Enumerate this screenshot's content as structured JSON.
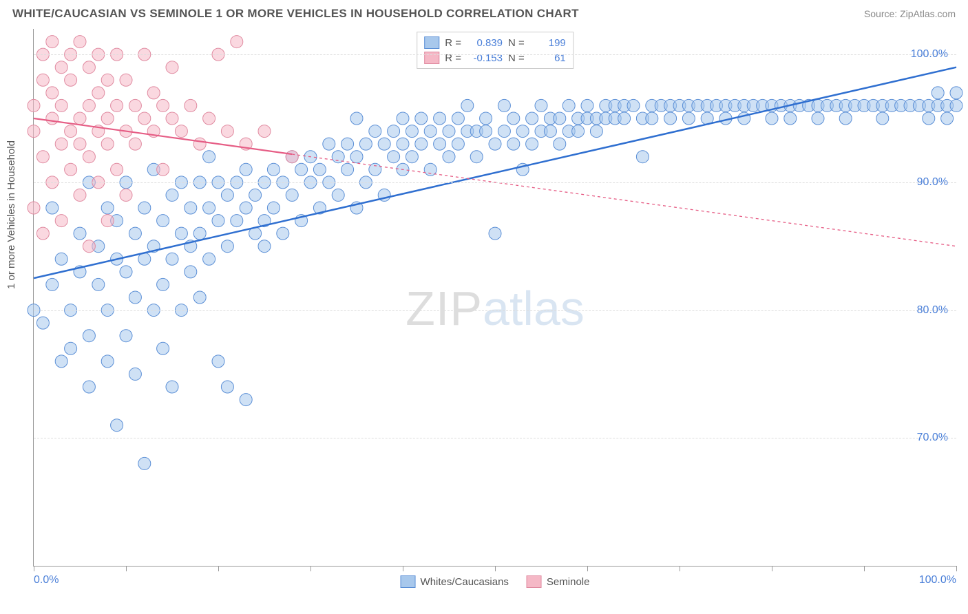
{
  "header": {
    "title": "WHITE/CAUCASIAN VS SEMINOLE 1 OR MORE VEHICLES IN HOUSEHOLD CORRELATION CHART",
    "source": "Source: ZipAtlas.com"
  },
  "chart": {
    "type": "scatter",
    "ylabel": "1 or more Vehicles in Household",
    "background_color": "#ffffff",
    "grid_color": "#dddddd",
    "axis_color": "#999999",
    "tick_label_color": "#4a7fd8",
    "label_fontsize": 15,
    "tick_fontsize": 16,
    "title_fontsize": 17,
    "xlim": [
      0,
      100
    ],
    "ylim": [
      60,
      102
    ],
    "xticks": [
      0,
      10,
      20,
      30,
      40,
      50,
      60,
      70,
      80,
      90,
      100
    ],
    "xtick_labels_shown": {
      "0": "0.0%",
      "100": "100.0%"
    },
    "yticks": [
      70,
      80,
      90,
      100
    ],
    "ytick_labels": [
      "70.0%",
      "80.0%",
      "90.0%",
      "100.0%"
    ],
    "watermark": {
      "part1": "ZIP",
      "part2": "atlas"
    },
    "legend_bottom": [
      {
        "label": "Whites/Caucasians",
        "fill": "#a8c8ec",
        "stroke": "#5b8fd6"
      },
      {
        "label": "Seminole",
        "fill": "#f5b8c6",
        "stroke": "#e08aa0"
      }
    ],
    "stats_legend": [
      {
        "fill": "#a8c8ec",
        "stroke": "#5b8fd6",
        "r_label": "R =",
        "r": "0.839",
        "n_label": "N =",
        "n": "199"
      },
      {
        "fill": "#f5b8c6",
        "stroke": "#e08aa0",
        "r_label": "R =",
        "r": "-0.153",
        "n_label": "N =",
        "n": "61"
      }
    ],
    "series": [
      {
        "name": "Whites/Caucasians",
        "marker_fill": "#a8c8ec",
        "marker_stroke": "#5b8fd6",
        "marker_radius": 9,
        "marker_opacity": 0.55,
        "trend": {
          "x1": 0,
          "y1": 82.5,
          "x2": 100,
          "y2": 99.0,
          "color": "#2f6fd0",
          "width": 2.5,
          "dash": "none",
          "solid_extent_x": 100
        },
        "points": [
          [
            0,
            80
          ],
          [
            1,
            79
          ],
          [
            2,
            82
          ],
          [
            2,
            88
          ],
          [
            3,
            76
          ],
          [
            3,
            84
          ],
          [
            4,
            80
          ],
          [
            4,
            77
          ],
          [
            5,
            86
          ],
          [
            5,
            83
          ],
          [
            6,
            78
          ],
          [
            6,
            90
          ],
          [
            6,
            74
          ],
          [
            7,
            85
          ],
          [
            7,
            82
          ],
          [
            8,
            88
          ],
          [
            8,
            80
          ],
          [
            8,
            76
          ],
          [
            9,
            84
          ],
          [
            9,
            87
          ],
          [
            9,
            71
          ],
          [
            10,
            83
          ],
          [
            10,
            78
          ],
          [
            10,
            90
          ],
          [
            11,
            86
          ],
          [
            11,
            81
          ],
          [
            11,
            75
          ],
          [
            12,
            88
          ],
          [
            12,
            84
          ],
          [
            12,
            68
          ],
          [
            13,
            85
          ],
          [
            13,
            80
          ],
          [
            13,
            91
          ],
          [
            14,
            87
          ],
          [
            14,
            82
          ],
          [
            14,
            77
          ],
          [
            15,
            89
          ],
          [
            15,
            84
          ],
          [
            15,
            74
          ],
          [
            16,
            86
          ],
          [
            16,
            90
          ],
          [
            16,
            80
          ],
          [
            17,
            88
          ],
          [
            17,
            83
          ],
          [
            17,
            85
          ],
          [
            18,
            90
          ],
          [
            18,
            86
          ],
          [
            18,
            81
          ],
          [
            19,
            88
          ],
          [
            19,
            84
          ],
          [
            19,
            92
          ],
          [
            20,
            87
          ],
          [
            20,
            90
          ],
          [
            20,
            76
          ],
          [
            21,
            89
          ],
          [
            21,
            85
          ],
          [
            21,
            74
          ],
          [
            22,
            90
          ],
          [
            22,
            87
          ],
          [
            23,
            73
          ],
          [
            23,
            91
          ],
          [
            23,
            88
          ],
          [
            24,
            89
          ],
          [
            24,
            86
          ],
          [
            25,
            90
          ],
          [
            25,
            87
          ],
          [
            25,
            85
          ],
          [
            26,
            91
          ],
          [
            26,
            88
          ],
          [
            27,
            90
          ],
          [
            27,
            86
          ],
          [
            28,
            92
          ],
          [
            28,
            89
          ],
          [
            29,
            91
          ],
          [
            29,
            87
          ],
          [
            30,
            92
          ],
          [
            30,
            90
          ],
          [
            31,
            91
          ],
          [
            31,
            88
          ],
          [
            32,
            93
          ],
          [
            32,
            90
          ],
          [
            33,
            92
          ],
          [
            33,
            89
          ],
          [
            34,
            93
          ],
          [
            34,
            91
          ],
          [
            35,
            92
          ],
          [
            35,
            88
          ],
          [
            35,
            95
          ],
          [
            36,
            93
          ],
          [
            36,
            90
          ],
          [
            37,
            94
          ],
          [
            37,
            91
          ],
          [
            38,
            93
          ],
          [
            38,
            89
          ],
          [
            39,
            94
          ],
          [
            39,
            92
          ],
          [
            40,
            93
          ],
          [
            40,
            91
          ],
          [
            40,
            95
          ],
          [
            41,
            94
          ],
          [
            41,
            92
          ],
          [
            42,
            93
          ],
          [
            42,
            95
          ],
          [
            43,
            94
          ],
          [
            43,
            91
          ],
          [
            44,
            95
          ],
          [
            44,
            93
          ],
          [
            45,
            94
          ],
          [
            45,
            92
          ],
          [
            46,
            95
          ],
          [
            46,
            93
          ],
          [
            47,
            94
          ],
          [
            47,
            96
          ],
          [
            48,
            94
          ],
          [
            48,
            92
          ],
          [
            49,
            95
          ],
          [
            49,
            94
          ],
          [
            50,
            93
          ],
          [
            50,
            86
          ],
          [
            51,
            94
          ],
          [
            51,
            96
          ],
          [
            52,
            93
          ],
          [
            52,
            95
          ],
          [
            53,
            94
          ],
          [
            53,
            91
          ],
          [
            54,
            95
          ],
          [
            54,
            93
          ],
          [
            55,
            94
          ],
          [
            55,
            96
          ],
          [
            56,
            94
          ],
          [
            56,
            95
          ],
          [
            57,
            95
          ],
          [
            57,
            93
          ],
          [
            58,
            96
          ],
          [
            58,
            94
          ],
          [
            59,
            95
          ],
          [
            59,
            94
          ],
          [
            60,
            96
          ],
          [
            60,
            95
          ],
          [
            61,
            95
          ],
          [
            61,
            94
          ],
          [
            62,
            96
          ],
          [
            62,
            95
          ],
          [
            63,
            95
          ],
          [
            63,
            96
          ],
          [
            64,
            96
          ],
          [
            64,
            95
          ],
          [
            65,
            96
          ],
          [
            66,
            95
          ],
          [
            66,
            92
          ],
          [
            67,
            96
          ],
          [
            67,
            95
          ],
          [
            68,
            96
          ],
          [
            69,
            96
          ],
          [
            69,
            95
          ],
          [
            70,
            96
          ],
          [
            71,
            96
          ],
          [
            71,
            95
          ],
          [
            72,
            96
          ],
          [
            73,
            96
          ],
          [
            73,
            95
          ],
          [
            74,
            96
          ],
          [
            75,
            96
          ],
          [
            75,
            95
          ],
          [
            76,
            96
          ],
          [
            77,
            96
          ],
          [
            77,
            95
          ],
          [
            78,
            96
          ],
          [
            79,
            96
          ],
          [
            80,
            96
          ],
          [
            80,
            95
          ],
          [
            81,
            96
          ],
          [
            82,
            96
          ],
          [
            82,
            95
          ],
          [
            83,
            96
          ],
          [
            84,
            96
          ],
          [
            85,
            96
          ],
          [
            85,
            95
          ],
          [
            86,
            96
          ],
          [
            87,
            96
          ],
          [
            88,
            96
          ],
          [
            88,
            95
          ],
          [
            89,
            96
          ],
          [
            90,
            96
          ],
          [
            91,
            96
          ],
          [
            92,
            96
          ],
          [
            92,
            95
          ],
          [
            93,
            96
          ],
          [
            94,
            96
          ],
          [
            95,
            96
          ],
          [
            96,
            96
          ],
          [
            97,
            96
          ],
          [
            97,
            95
          ],
          [
            98,
            96
          ],
          [
            98,
            97
          ],
          [
            99,
            96
          ],
          [
            99,
            95
          ],
          [
            100,
            96
          ],
          [
            100,
            97
          ]
        ]
      },
      {
        "name": "Seminole",
        "marker_fill": "#f5b8c6",
        "marker_stroke": "#e08aa0",
        "marker_radius": 9,
        "marker_opacity": 0.55,
        "trend": {
          "x1": 0,
          "y1": 95.0,
          "x2": 100,
          "y2": 85.0,
          "color": "#e65d85",
          "width": 2.2,
          "dash": "4 4",
          "solid_extent_x": 28
        },
        "points": [
          [
            0,
            94
          ],
          [
            0,
            96
          ],
          [
            0,
            88
          ],
          [
            1,
            98
          ],
          [
            1,
            92
          ],
          [
            1,
            100
          ],
          [
            1,
            86
          ],
          [
            2,
            95
          ],
          [
            2,
            97
          ],
          [
            2,
            90
          ],
          [
            2,
            101
          ],
          [
            3,
            93
          ],
          [
            3,
            99
          ],
          [
            3,
            87
          ],
          [
            3,
            96
          ],
          [
            4,
            94
          ],
          [
            4,
            100
          ],
          [
            4,
            91
          ],
          [
            4,
            98
          ],
          [
            5,
            95
          ],
          [
            5,
            89
          ],
          [
            5,
            101
          ],
          [
            5,
            93
          ],
          [
            6,
            96
          ],
          [
            6,
            92
          ],
          [
            6,
            99
          ],
          [
            6,
            85
          ],
          [
            7,
            94
          ],
          [
            7,
            97
          ],
          [
            7,
            100
          ],
          [
            7,
            90
          ],
          [
            8,
            95
          ],
          [
            8,
            98
          ],
          [
            8,
            87
          ],
          [
            8,
            93
          ],
          [
            9,
            96
          ],
          [
            9,
            91
          ],
          [
            9,
            100
          ],
          [
            10,
            94
          ],
          [
            10,
            98
          ],
          [
            10,
            89
          ],
          [
            11,
            96
          ],
          [
            11,
            93
          ],
          [
            12,
            95
          ],
          [
            12,
            100
          ],
          [
            13,
            94
          ],
          [
            13,
            97
          ],
          [
            14,
            96
          ],
          [
            14,
            91
          ],
          [
            15,
            95
          ],
          [
            15,
            99
          ],
          [
            16,
            94
          ],
          [
            17,
            96
          ],
          [
            18,
            93
          ],
          [
            19,
            95
          ],
          [
            20,
            100
          ],
          [
            21,
            94
          ],
          [
            22,
            101
          ],
          [
            23,
            93
          ],
          [
            25,
            94
          ],
          [
            28,
            92
          ]
        ]
      }
    ]
  }
}
